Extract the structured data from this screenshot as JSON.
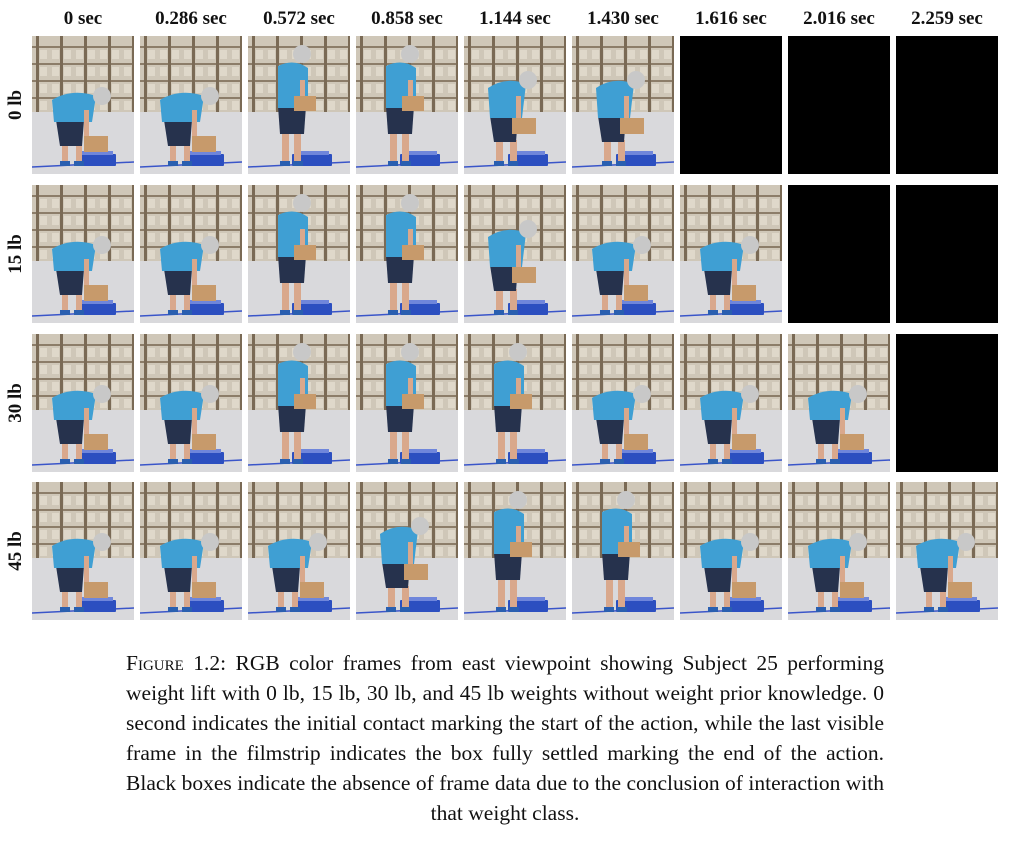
{
  "figure": {
    "time_labels": [
      "0 sec",
      "0.286 sec",
      "0.572 sec",
      "0.858 sec",
      "1.144 sec",
      "1.430 sec",
      "1.616 sec",
      "2.016 sec",
      "2.259 sec"
    ],
    "rows": [
      {
        "weight_label": "0 lb",
        "frames": [
          "pose-bent",
          "pose-bent",
          "pose-upright",
          "pose-upright",
          "pose-mid",
          "pose-mid",
          "blank",
          "blank",
          "blank"
        ]
      },
      {
        "weight_label": "15 lb",
        "frames": [
          "pose-bent",
          "pose-bent",
          "pose-upright",
          "pose-upright",
          "pose-mid",
          "pose-bent",
          "pose-bent",
          "blank",
          "blank"
        ]
      },
      {
        "weight_label": "30 lb",
        "frames": [
          "pose-bent",
          "pose-bent",
          "pose-upright",
          "pose-upright",
          "pose-upright",
          "pose-bent",
          "pose-bent",
          "pose-bent",
          "blank"
        ]
      },
      {
        "weight_label": "45 lb",
        "frames": [
          "pose-bent",
          "pose-bent",
          "pose-bent",
          "pose-mid",
          "pose-upright",
          "pose-upright",
          "pose-bent",
          "pose-bent",
          "pose-bent"
        ]
      }
    ]
  },
  "caption": {
    "label": "Figure",
    "number": "1.2:",
    "text": "RGB color frames from east viewpoint showing Subject 25 performing weight lift with 0 lb, 15 lb, 30 lb, and 45 lb weights without weight prior knowledge. 0 second indicates the initial contact marking the start of the action, while the last visible frame in the filmstrip indicates the box fully settled marking the end of the action. Black boxes indicate the absence of frame data due to the conclusion of interaction with that weight class."
  },
  "colors": {
    "shelf_bg": "#cfc7b8",
    "shelf_frame": "#7a6a55",
    "floor": "#d9d9dc",
    "shirt": "#3f9fd3",
    "shorts": "#26324d",
    "skin": "#d9a88c",
    "box": "#c79a6b",
    "platform": "#2c4fc0",
    "blur_face": "#c8c8c8",
    "blank": "#000000"
  }
}
